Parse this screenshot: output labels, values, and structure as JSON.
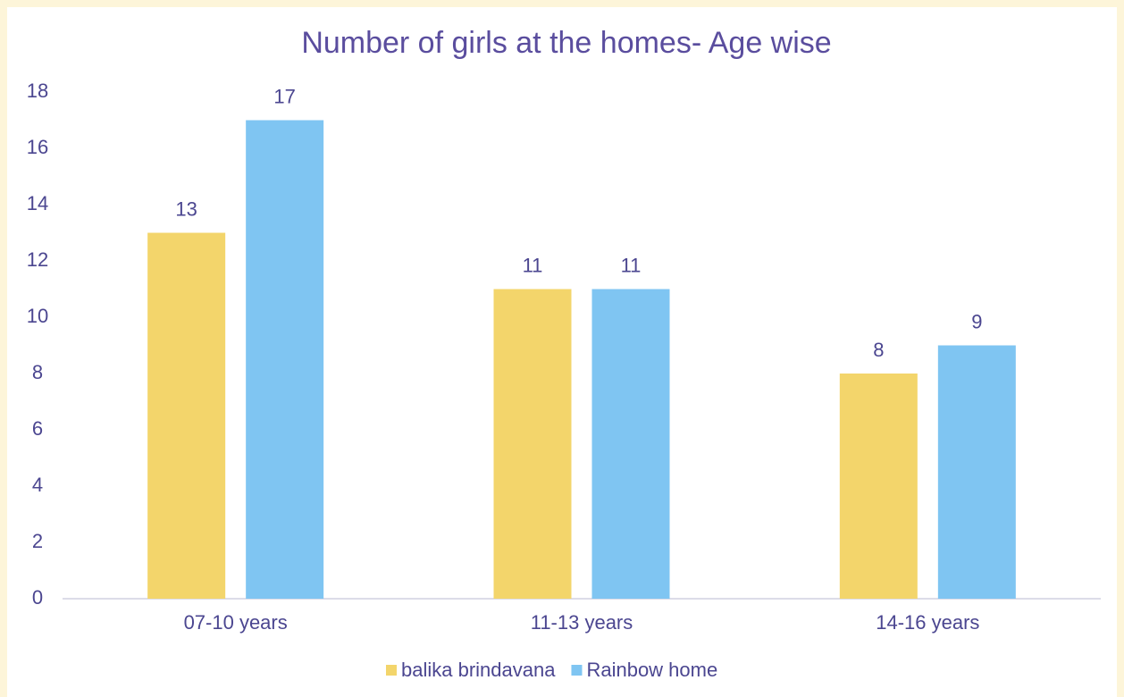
{
  "chart_data": {
    "type": "bar",
    "title": "Number of girls at the homes- Age wise",
    "categories": [
      "07-10 years",
      "11-13 years",
      "14-16 years"
    ],
    "series": [
      {
        "name": "balika brindavana",
        "color": "#f3d56b",
        "values": [
          13,
          11,
          8
        ]
      },
      {
        "name": "Rainbow home",
        "color": "#7fc5f2",
        "values": [
          17,
          11,
          9
        ]
      }
    ],
    "ylim": [
      0,
      18
    ],
    "yticks": [
      0,
      2,
      4,
      6,
      8,
      10,
      12,
      14,
      16,
      18
    ],
    "grid": false,
    "legend": "bottom"
  }
}
